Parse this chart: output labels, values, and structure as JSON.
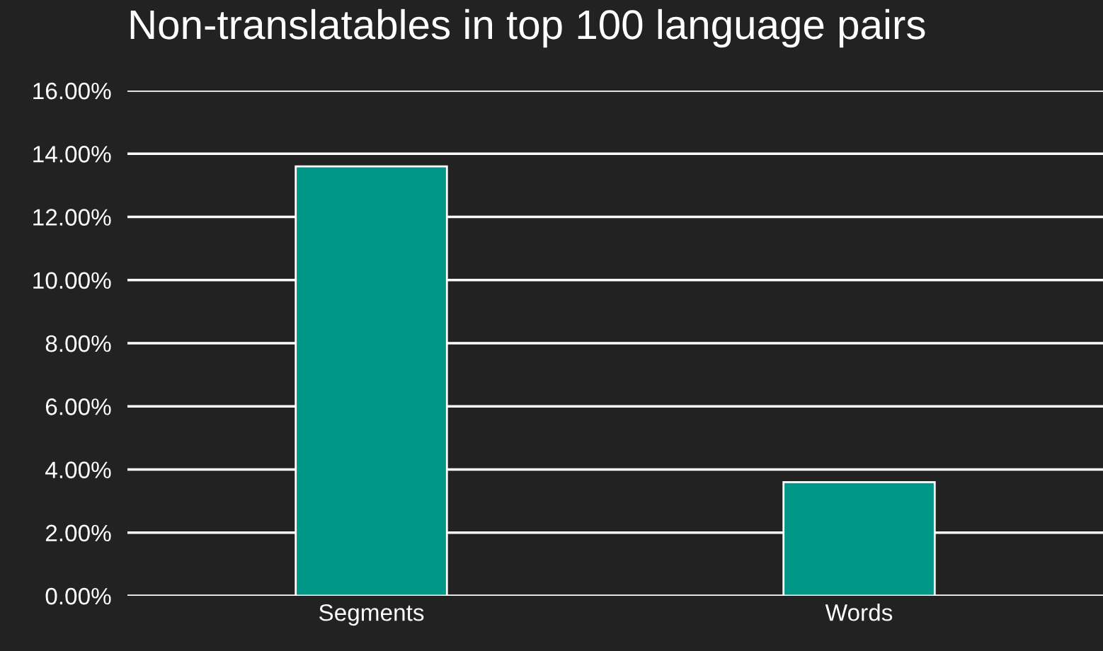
{
  "chart_data": {
    "type": "bar",
    "title": "Non-translatables in top 100 language pairs",
    "categories": [
      "Segments",
      "Words"
    ],
    "series": [
      {
        "color": "#009688",
        "values": [
          13.6,
          3.6
        ]
      }
    ],
    "ylim": [
      0,
      16
    ],
    "yticks": [
      {
        "value": 0,
        "label": "0.00%"
      },
      {
        "value": 2,
        "label": "2.00%"
      },
      {
        "value": 4,
        "label": "4.00%"
      },
      {
        "value": 6,
        "label": "6.00%"
      },
      {
        "value": 8,
        "label": "8.00%"
      },
      {
        "value": 10,
        "label": "10.00%"
      },
      {
        "value": 12,
        "label": "12.00%"
      },
      {
        "value": 14,
        "label": "14.00%"
      },
      {
        "value": 16,
        "label": "16.00%"
      }
    ],
    "grid": "y"
  }
}
